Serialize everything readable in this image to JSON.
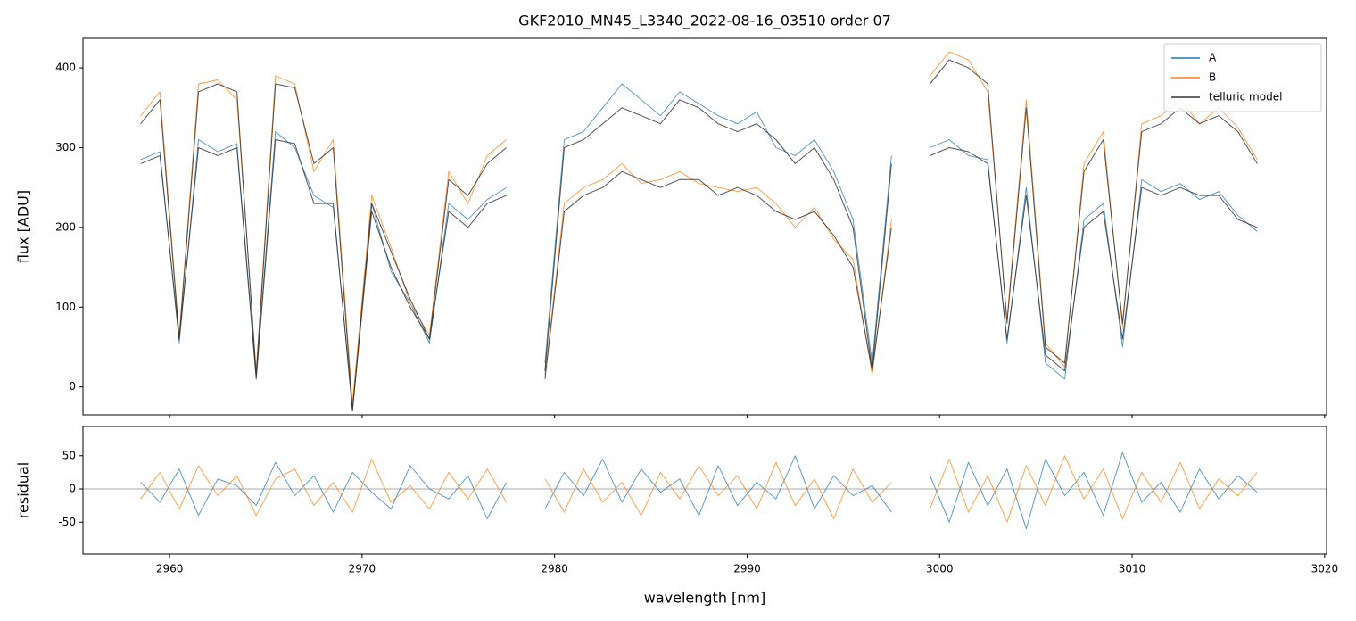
{
  "chart_data": [
    {
      "type": "line",
      "title": "GKF2010_MN45_L3340_2022-08-16_03510  order 07",
      "y_label": "flux [ADU]",
      "x": [
        2958.5,
        2959.5,
        2960.5,
        2961.5,
        2962.5,
        2963.5,
        2964.5,
        2965.5,
        2966.5,
        2967.5,
        2968.5,
        2969.5,
        2970.5,
        2971.5,
        2972.5,
        2973.5,
        2974.5,
        2975.5,
        2976.5,
        2977.5,
        2978.5,
        2979.5,
        2980.5,
        2981.5,
        2982.5,
        2983.5,
        2984.5,
        2985.5,
        2986.5,
        2987.5,
        2988.5,
        2989.5,
        2990.5,
        2991.5,
        2992.5,
        2993.5,
        2994.5,
        2995.5,
        2996.5,
        2997.5,
        2998.5,
        2999.5,
        3000.5,
        3001.5,
        3002.5,
        3003.5,
        3004.5,
        3005.5,
        3006.5,
        3007.5,
        3008.5,
        3009.5,
        3010.5,
        3011.5,
        3012.5,
        3013.5,
        3014.5,
        3015.5,
        3016.5
      ],
      "series": [
        {
          "name": "A",
          "color": "#1f77b4",
          "values": [
            285,
            295,
            55,
            310,
            295,
            305,
            15,
            320,
            300,
            240,
            225,
            -25,
            230,
            145,
            105,
            55,
            230,
            210,
            235,
            250,
            null,
            30,
            310,
            320,
            350,
            380,
            360,
            340,
            370,
            355,
            340,
            330,
            345,
            300,
            290,
            310,
            270,
            210,
            30,
            290,
            null,
            300,
            310,
            290,
            285,
            55,
            250,
            30,
            10,
            210,
            230,
            50,
            260,
            245,
            255,
            235,
            245,
            215,
            195
          ]
        },
        {
          "name": "B",
          "color": "#ff7f0e",
          "values": [
            340,
            370,
            65,
            380,
            385,
            360,
            20,
            390,
            380,
            270,
            310,
            -20,
            240,
            175,
            105,
            65,
            270,
            230,
            290,
            310,
            null,
            15,
            230,
            250,
            260,
            280,
            255,
            260,
            270,
            255,
            250,
            245,
            250,
            230,
            200,
            225,
            185,
            160,
            15,
            210,
            null,
            390,
            420,
            410,
            370,
            85,
            360,
            55,
            25,
            280,
            320,
            75,
            330,
            340,
            360,
            330,
            350,
            325,
            285
          ]
        },
        {
          "name": "telluric model",
          "color": "#333333",
          "values": [
            280,
            290,
            60,
            300,
            290,
            300,
            10,
            310,
            305,
            230,
            230,
            -30,
            220,
            150,
            100,
            60,
            220,
            200,
            230,
            240,
            null,
            20,
            300,
            310,
            330,
            350,
            340,
            330,
            360,
            350,
            330,
            320,
            330,
            310,
            280,
            300,
            260,
            200,
            20,
            280,
            null,
            290,
            300,
            295,
            280,
            60,
            240,
            40,
            20,
            200,
            220,
            60,
            250,
            240,
            250,
            240,
            240,
            210,
            200
          ]
        },
        {
          "color": "#333333",
          "values": [
            330,
            360,
            60,
            370,
            380,
            370,
            15,
            380,
            375,
            280,
            300,
            -30,
            230,
            170,
            110,
            60,
            260,
            240,
            280,
            300,
            null,
            10,
            220,
            240,
            250,
            270,
            260,
            250,
            260,
            260,
            240,
            250,
            240,
            220,
            210,
            220,
            190,
            150,
            20,
            200,
            null,
            380,
            410,
            400,
            380,
            80,
            350,
            50,
            30,
            270,
            310,
            80,
            320,
            330,
            350,
            330,
            340,
            320,
            280
          ]
        }
      ],
      "xlim": [
        2955.5,
        3020.1
      ],
      "ylim": [
        -35,
        437
      ],
      "xticks": [
        2960,
        2970,
        2980,
        2990,
        3000,
        3010,
        3020
      ],
      "yticks": [
        0,
        100,
        200,
        300,
        400
      ],
      "legend": "upper right"
    },
    {
      "type": "line",
      "y_label": "residual",
      "x_label": "wavelength [nm]",
      "x": [
        2958.5,
        2959.5,
        2960.5,
        2961.5,
        2962.5,
        2963.5,
        2964.5,
        2965.5,
        2966.5,
        2967.5,
        2968.5,
        2969.5,
        2970.5,
        2971.5,
        2972.5,
        2973.5,
        2974.5,
        2975.5,
        2976.5,
        2977.5,
        2978.5,
        2979.5,
        2980.5,
        2981.5,
        2982.5,
        2983.5,
        2984.5,
        2985.5,
        2986.5,
        2987.5,
        2988.5,
        2989.5,
        2990.5,
        2991.5,
        2992.5,
        2993.5,
        2994.5,
        2995.5,
        2996.5,
        2997.5,
        2998.5,
        2999.5,
        3000.5,
        3001.5,
        3002.5,
        3003.5,
        3004.5,
        3005.5,
        3006.5,
        3007.5,
        3008.5,
        3009.5,
        3010.5,
        3011.5,
        3012.5,
        3013.5,
        3014.5,
        3015.5,
        3016.5
      ],
      "series": [
        {
          "color": "#1f77b4",
          "values": [
            10,
            -20,
            30,
            -40,
            15,
            5,
            -25,
            40,
            -10,
            20,
            -35,
            25,
            -5,
            -30,
            35,
            0,
            -15,
            20,
            -45,
            10,
            null,
            -30,
            25,
            -10,
            45,
            -20,
            30,
            -5,
            15,
            -40,
            35,
            -25,
            10,
            -15,
            50,
            -30,
            20,
            -10,
            5,
            -35,
            null,
            20,
            -50,
            40,
            -25,
            30,
            -60,
            45,
            -10,
            25,
            -40,
            55,
            -20,
            10,
            -35,
            30,
            -15,
            20,
            -5
          ]
        },
        {
          "color": "#ff7f0e",
          "values": [
            -15,
            25,
            -30,
            35,
            -10,
            20,
            -40,
            15,
            30,
            -25,
            10,
            -35,
            45,
            -20,
            5,
            -30,
            25,
            -15,
            30,
            -20,
            null,
            15,
            -35,
            30,
            -20,
            10,
            -40,
            25,
            -15,
            35,
            -10,
            20,
            -30,
            40,
            -25,
            15,
            -45,
            30,
            -20,
            10,
            null,
            -30,
            45,
            -35,
            20,
            -50,
            35,
            -25,
            50,
            -15,
            30,
            -45,
            25,
            -20,
            40,
            -30,
            15,
            -10,
            25
          ]
        }
      ],
      "hline": 0,
      "xlim": [
        2955.5,
        3020.1
      ],
      "ylim": [
        -98,
        94
      ],
      "xticks": [
        2960,
        2970,
        2980,
        2990,
        3000,
        3010,
        3020
      ],
      "yticks": [
        -50,
        0,
        50
      ]
    }
  ]
}
